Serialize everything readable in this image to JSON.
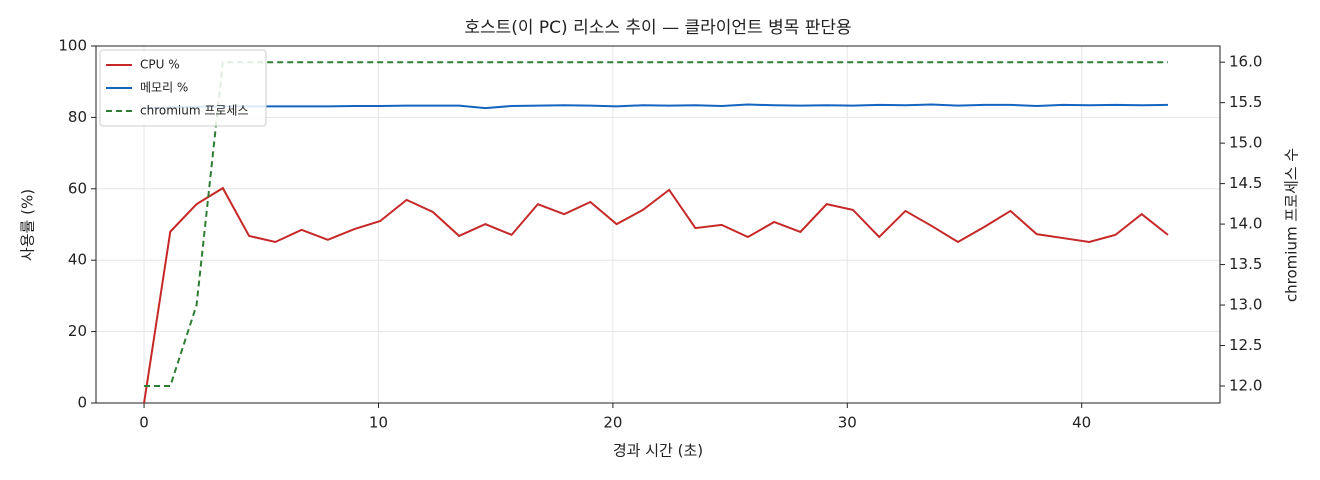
{
  "chart_data": {
    "type": "line",
    "title": "호스트(이 PC) 리소스 추이 — 클라이언트 병목 판단용",
    "xlabel": "경과 시간 (초)",
    "ylabel": "사용률 (%)",
    "y2label": "chromium 프로세스 수",
    "x": [
      0,
      1.12,
      2.24,
      3.36,
      4.48,
      5.6,
      6.72,
      7.84,
      8.96,
      10.08,
      11.2,
      12.32,
      13.44,
      14.56,
      15.68,
      16.8,
      17.92,
      19.04,
      20.16,
      21.28,
      22.4,
      23.52,
      24.64,
      25.76,
      26.88,
      28.0,
      29.12,
      30.24,
      31.36,
      32.48,
      33.6,
      34.72,
      35.84,
      36.96,
      38.08,
      39.2,
      40.32,
      41.44,
      42.56,
      43.68
    ],
    "series": [
      {
        "name": "CPU %",
        "color": "#c62828",
        "style": "solid",
        "axis": "y",
        "values": [
          0,
          48,
          55.7,
          60.2,
          46.8,
          45.1,
          48.5,
          45.7,
          48.7,
          51,
          56.9,
          53.5,
          46.8,
          50.1,
          47.1,
          55.7,
          52.9,
          56.3,
          50.1,
          54.1,
          59.7,
          49,
          49.9,
          46.5,
          50.7,
          47.9,
          55.7,
          54.1,
          46.5,
          53.8,
          49.6,
          45.1,
          49.3,
          53.8,
          47.3,
          46.2,
          45.1,
          47.1,
          52.9,
          47.1
        ]
      },
      {
        "name": "메모리 %",
        "color": "#1565c0",
        "style": "solid",
        "axis": "y",
        "values": [
          82.6,
          82.8,
          83,
          83.1,
          83.1,
          83.1,
          83.1,
          83.1,
          83.2,
          83.2,
          83.3,
          83.3,
          83.3,
          82.6,
          83.2,
          83.3,
          83.4,
          83.3,
          83.1,
          83.4,
          83.3,
          83.4,
          83.2,
          83.6,
          83.4,
          83.3,
          83.4,
          83.3,
          83.5,
          83.4,
          83.6,
          83.3,
          83.5,
          83.5,
          83.2,
          83.5,
          83.4,
          83.5,
          83.4,
          83.5
        ]
      },
      {
        "name": "chromium 프로세스",
        "color": "#2e7d32",
        "style": "dashed",
        "axis": "y2",
        "values": [
          12,
          12,
          13,
          16,
          16,
          16,
          16,
          16,
          16,
          16,
          16,
          16,
          16,
          16,
          16,
          16,
          16,
          16,
          16,
          16,
          16,
          16,
          16,
          16,
          16,
          16,
          16,
          16,
          16,
          16,
          16,
          16,
          16,
          16,
          16,
          16,
          16,
          16,
          16,
          16
        ]
      }
    ],
    "xlim": [
      -2.05,
      45.9
    ],
    "xticks": [
      0,
      10,
      20,
      30,
      40
    ],
    "ylim": [
      0,
      100
    ],
    "yticks": [
      0,
      20,
      40,
      60,
      80,
      100
    ],
    "y2lim": [
      11.79,
      16.2
    ],
    "y2ticks": [
      {
        "value": 12,
        "label": "12.0"
      },
      {
        "value": 12.5,
        "label": "12.5"
      },
      {
        "value": 13,
        "label": "13.0"
      },
      {
        "value": 13.5,
        "label": "13.5"
      },
      {
        "value": 14,
        "label": "14.0"
      },
      {
        "value": 14.5,
        "label": "14.5"
      },
      {
        "value": 15,
        "label": "15.0"
      },
      {
        "value": 15.5,
        "label": "15.5"
      },
      {
        "value": 16,
        "label": "16.0"
      }
    ],
    "grid": true,
    "legend": "upper left"
  }
}
